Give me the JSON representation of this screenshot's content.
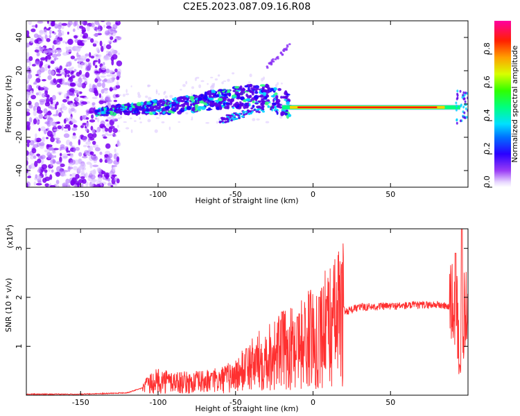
{
  "title": "C2E5.2023.087.09.16.R08",
  "chart_data": [
    {
      "type": "heatmap",
      "xlabel": "Height of straight line (km)",
      "ylabel": "Frequency (Hz)",
      "xlim": [
        -185,
        100
      ],
      "ylim": [
        -50,
        50
      ],
      "xticks": [
        -150,
        -100,
        -50,
        0,
        50
      ],
      "yticks": [
        -40,
        -20,
        0,
        20,
        40
      ],
      "grid": false,
      "colorbar": {
        "label": "Normalized spectral amplitude",
        "range": [
          0,
          1
        ],
        "ticks": [
          "0.0",
          "0.2",
          "0.4",
          "0.6",
          "0.8"
        ],
        "colors": [
          "#ffffff",
          "#d8b8ff",
          "#9a3cf5",
          "#6a00e8",
          "#0010ff",
          "#00c8ff",
          "#00ff80",
          "#30ff00",
          "#d8ff00",
          "#ffa000",
          "#ff2000",
          "#ff00a0"
        ]
      },
      "ridge": [
        {
          "x": -140,
          "y": -5
        },
        {
          "x": -120,
          "y": -3
        },
        {
          "x": -100,
          "y": -2
        },
        {
          "x": -80,
          "y": 0
        },
        {
          "x": -60,
          "y": 3
        },
        {
          "x": -40,
          "y": 5
        },
        {
          "x": -25,
          "y": 3
        },
        {
          "x": -15,
          "y": -2
        },
        {
          "x": 0,
          "y": -2
        },
        {
          "x": 50,
          "y": -2
        },
        {
          "x": 90,
          "y": -2
        },
        {
          "x": 98,
          "y": -3
        }
      ],
      "secondary_branch": [
        {
          "x": -60,
          "y": -10
        },
        {
          "x": -45,
          "y": -6
        },
        {
          "x": -35,
          "y": -3
        }
      ],
      "upper_branch": [
        {
          "x": -30,
          "y": 22
        },
        {
          "x": -20,
          "y": 30
        },
        {
          "x": -15,
          "y": 36
        }
      ]
    },
    {
      "type": "line",
      "xlabel": "Height of straight line (km)",
      "ylabel": "SNR (10 * v/v)",
      "multiplier": "(x10^4)",
      "multiplier_base": "(x10",
      "multiplier_exp": "4",
      "multiplier_close": ")",
      "xlim": [
        -185,
        100
      ],
      "ylim": [
        0,
        3.4
      ],
      "xticks": [
        -150,
        -100,
        -50,
        0,
        50
      ],
      "yticks": [
        1,
        2,
        3
      ],
      "grid": false,
      "series": [
        {
          "color": "#ff3030",
          "envelope": [
            {
              "x": -185,
              "y": 0.02
            },
            {
              "x": -150,
              "y": 0.02
            },
            {
              "x": -120,
              "y": 0.05
            },
            {
              "x": -110,
              "y": 0.15
            },
            {
              "x": -100,
              "y": 0.3
            },
            {
              "x": -80,
              "y": 0.25
            },
            {
              "x": -60,
              "y": 0.3
            },
            {
              "x": -50,
              "y": 0.4
            },
            {
              "x": -40,
              "y": 0.6
            },
            {
              "x": -30,
              "y": 0.8
            },
            {
              "x": -20,
              "y": 0.9
            },
            {
              "x": -10,
              "y": 1.0
            },
            {
              "x": 0,
              "y": 1.2
            },
            {
              "x": 10,
              "y": 1.4
            },
            {
              "x": 20,
              "y": 1.7
            },
            {
              "x": 30,
              "y": 1.8
            },
            {
              "x": 50,
              "y": 1.82
            },
            {
              "x": 80,
              "y": 1.85
            },
            {
              "x": 90,
              "y": 1.8
            },
            {
              "x": 95,
              "y": 1.5
            },
            {
              "x": 100,
              "y": 1.75
            }
          ],
          "peaks": [
            {
              "x": -107,
              "y": 0.35
            },
            {
              "x": -65,
              "y": 0.45
            },
            {
              "x": -43,
              "y": 0.95
            },
            {
              "x": -20,
              "y": 1.7
            },
            {
              "x": -10,
              "y": 1.6
            },
            {
              "x": 4,
              "y": 2.0
            },
            {
              "x": 9,
              "y": 2.02
            },
            {
              "x": 20,
              "y": 1.8
            },
            {
              "x": 92,
              "y": 2.9
            },
            {
              "x": 96,
              "y": 3.4
            }
          ]
        }
      ]
    }
  ]
}
